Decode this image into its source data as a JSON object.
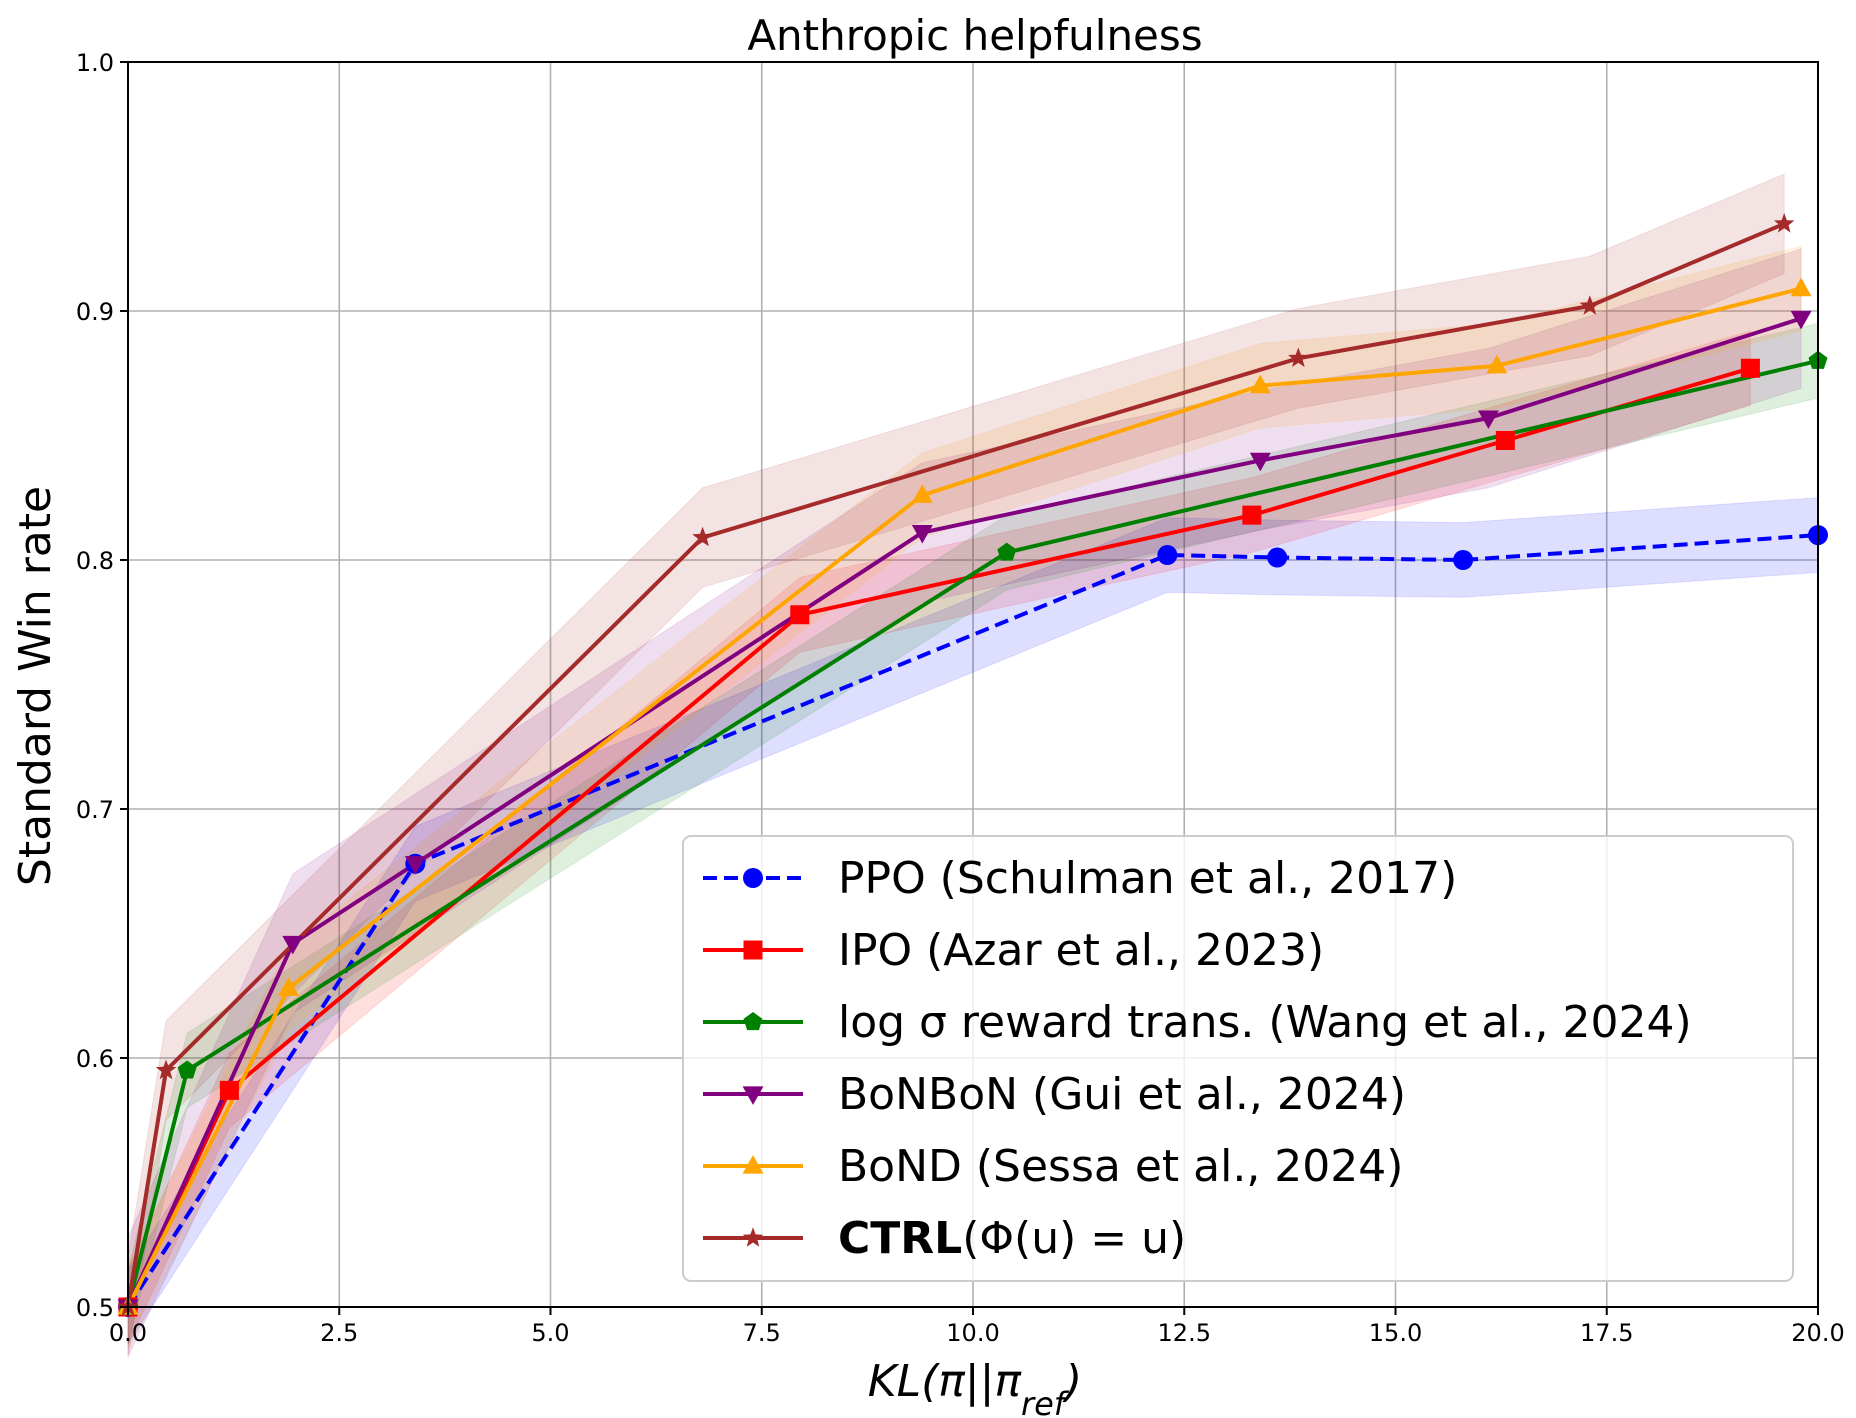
{
  "chart_data": {
    "type": "line",
    "title": "Anthropic helpfulness",
    "xlabel": "KL(π||πref)",
    "xlabel_main": "KL(π||π",
    "xlabel_sub": "ref",
    "xlabel_close": ")",
    "ylabel": "Standard Win rate",
    "xlim": [
      0.0,
      20.0
    ],
    "ylim": [
      0.5,
      1.0
    ],
    "xticks": [
      "0.0",
      "2.5",
      "5.0",
      "7.5",
      "10.0",
      "12.5",
      "15.0",
      "17.5",
      "20.0"
    ],
    "yticks": [
      "0.5",
      "0.6",
      "0.7",
      "0.8",
      "0.9",
      "1.0"
    ],
    "grid": true,
    "legend_position": "bottom-right",
    "series": [
      {
        "name": "PPO (Schulman et al., 2017)",
        "color": "#0000ff",
        "marker": "circle",
        "linestyle": "dashed",
        "x": [
          0.0,
          3.4,
          12.3,
          13.6,
          15.8,
          20.0
        ],
        "y": [
          0.5,
          0.678,
          0.802,
          0.801,
          0.8,
          0.81
        ],
        "band": 0.015
      },
      {
        "name": "IPO (Azar et al., 2023)",
        "color": "#ff0000",
        "marker": "square",
        "linestyle": "solid",
        "x": [
          0.0,
          1.2,
          7.95,
          13.3,
          16.3,
          19.2
        ],
        "y": [
          0.5,
          0.587,
          0.778,
          0.818,
          0.848,
          0.877
        ],
        "band": 0.015
      },
      {
        "name": "log σ reward trans. (Wang et al., 2024)",
        "color": "#008000",
        "marker": "pentagon",
        "linestyle": "solid",
        "x": [
          0.0,
          0.7,
          10.4,
          20.0
        ],
        "y": [
          0.5,
          0.595,
          0.803,
          0.88
        ],
        "band": 0.015
      },
      {
        "name": "BoNBoN (Gui et al., 2024)",
        "color": "#800080",
        "marker": "triangle-down",
        "linestyle": "solid",
        "x": [
          0.0,
          1.95,
          3.4,
          9.4,
          13.4,
          16.1,
          19.8
        ],
        "y": [
          0.5,
          0.646,
          0.678,
          0.811,
          0.84,
          0.857,
          0.897
        ],
        "band": 0.028
      },
      {
        "name": "BoND (Sessa et al., 2024)",
        "color": "#ffa500",
        "marker": "triangle-up",
        "linestyle": "solid",
        "x": [
          0.0,
          1.9,
          9.4,
          13.4,
          16.2,
          19.8
        ],
        "y": [
          0.5,
          0.628,
          0.826,
          0.87,
          0.878,
          0.909
        ],
        "band": 0.017
      },
      {
        "name": "CTRL(Φ(u) = u)",
        "name_bold": "CTRL",
        "name_rest": "(Φ(u) = u)",
        "color": "#a52a2a",
        "marker": "star",
        "linestyle": "solid",
        "x": [
          0.0,
          0.45,
          6.8,
          13.85,
          17.3,
          19.6
        ],
        "y": [
          0.5,
          0.595,
          0.809,
          0.881,
          0.902,
          0.935
        ],
        "band": 0.02
      }
    ]
  }
}
